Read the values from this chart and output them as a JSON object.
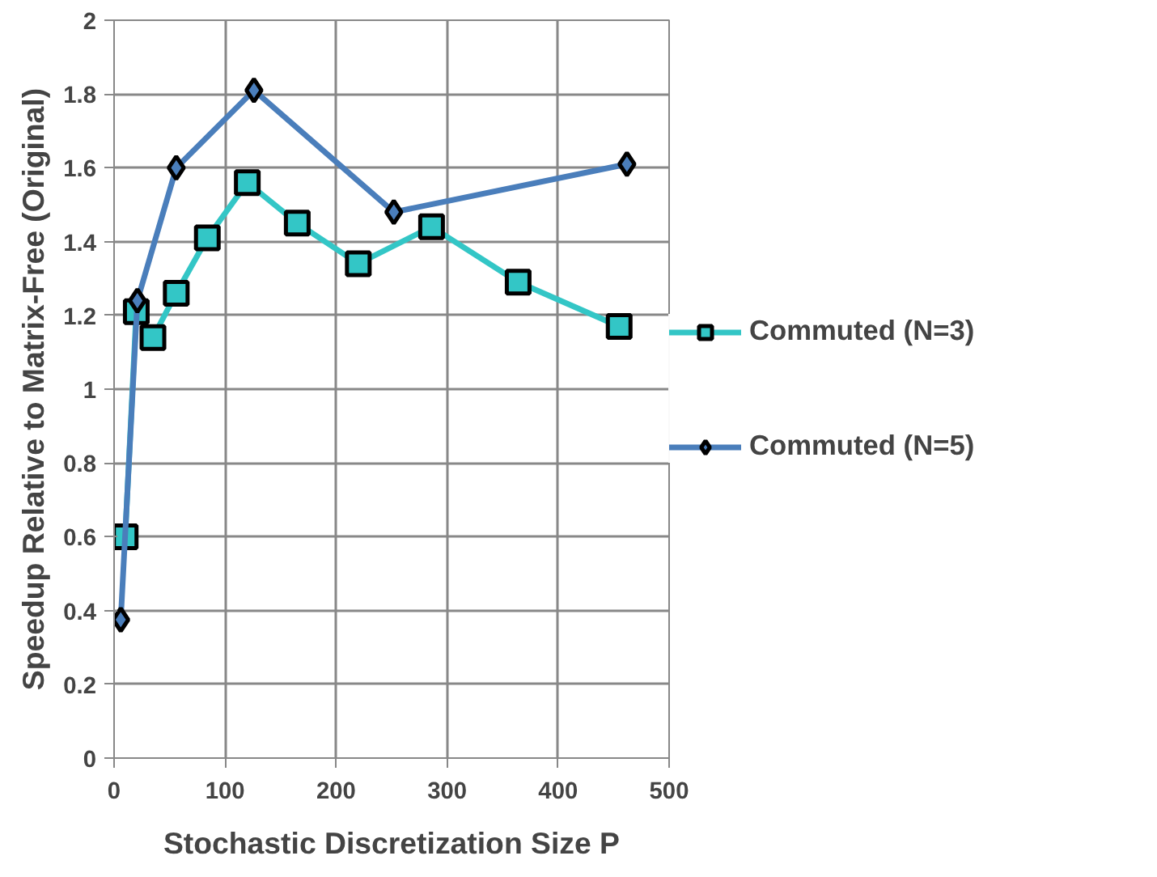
{
  "chart_data": {
    "type": "line",
    "xlabel": "Stochastic Discretization Size P",
    "ylabel": "Speedup Relative to Matrix-Free (Original)",
    "xlim": [
      0,
      500
    ],
    "xticks": [
      0,
      100,
      200,
      300,
      400,
      500
    ],
    "ylim": [
      0,
      2
    ],
    "yticks": [
      0,
      0.2,
      0.4,
      0.6,
      0.8,
      1,
      1.2,
      1.4,
      1.6,
      1.8,
      2
    ],
    "grid": true,
    "legend": "right",
    "line_style": "solid",
    "series": [
      {
        "name": "Commuted (N=3)",
        "color": "#33c6c6",
        "marker": "square",
        "x": [
          10,
          20,
          35,
          56,
          84,
          120,
          165,
          220,
          286,
          364,
          455
        ],
        "values": [
          0.6,
          1.21,
          1.14,
          1.26,
          1.41,
          1.56,
          1.45,
          1.34,
          1.44,
          1.29,
          1.17
        ]
      },
      {
        "name": "Commuted (N=5)",
        "color": "#4a7ebb",
        "marker": "diamond",
        "x": [
          6,
          21,
          56,
          126,
          252,
          462
        ],
        "values": [
          0.375,
          1.24,
          1.6,
          1.81,
          1.48,
          1.61
        ]
      }
    ]
  }
}
